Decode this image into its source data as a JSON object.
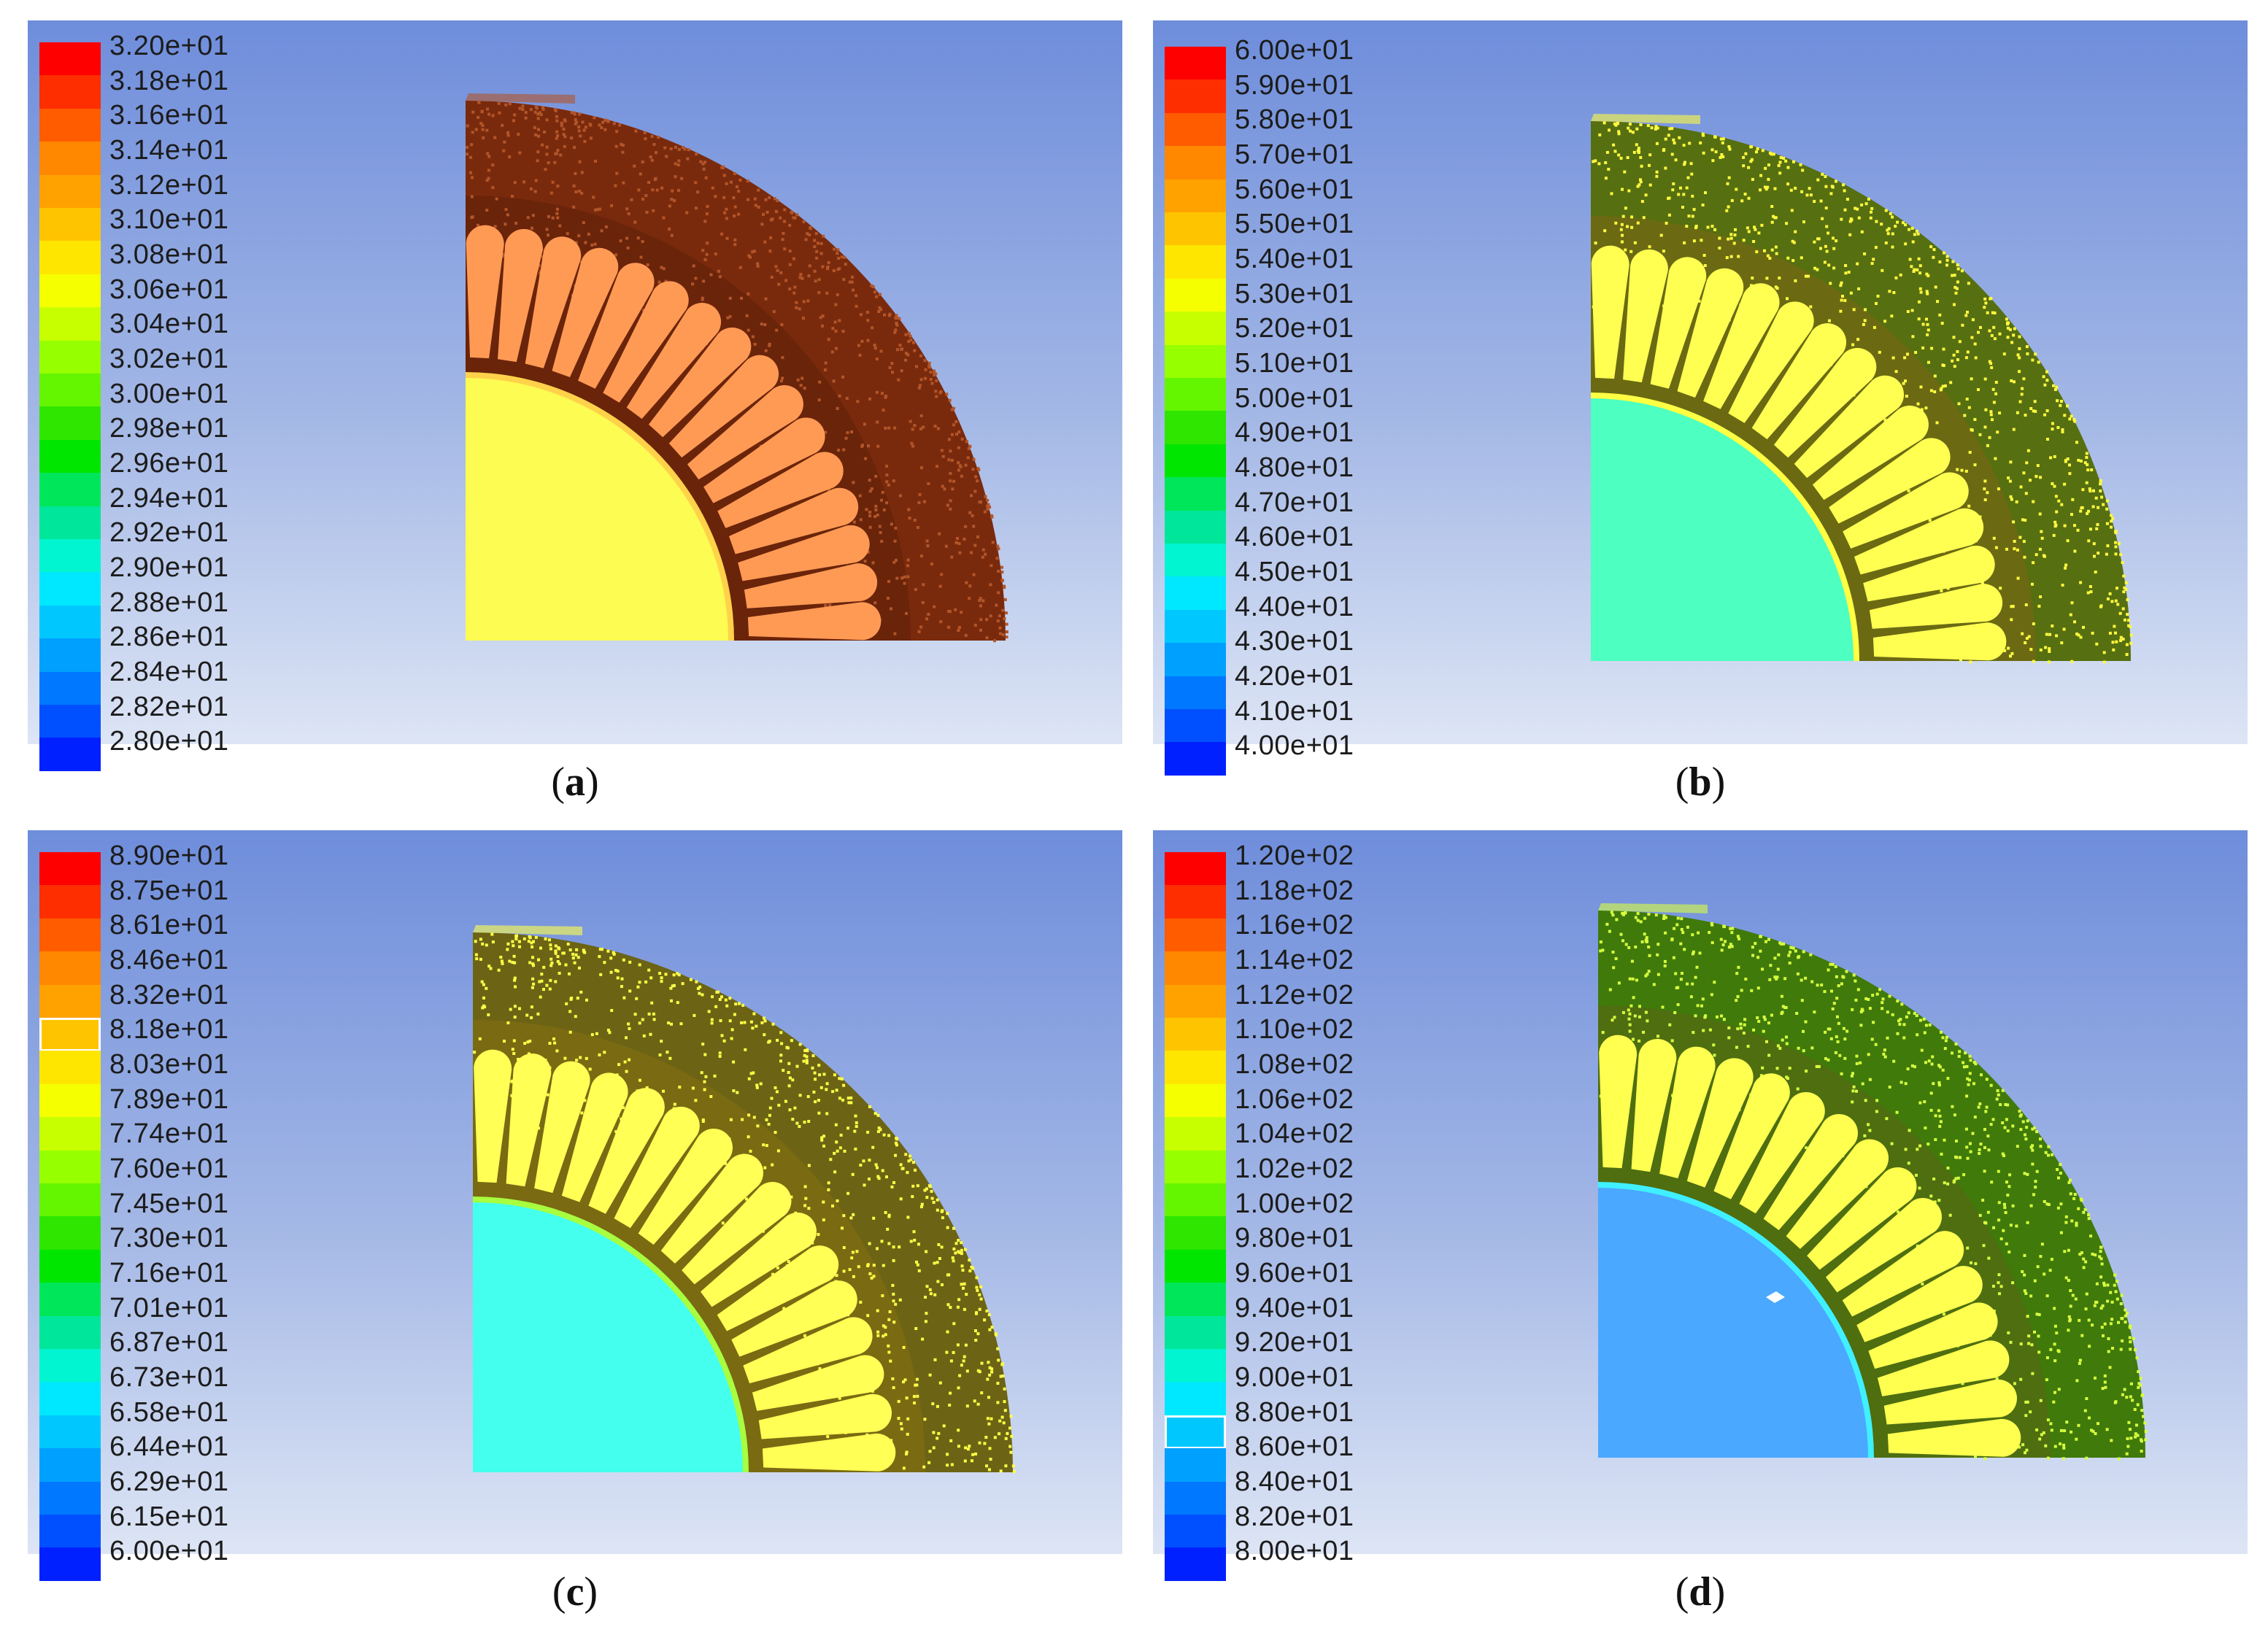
{
  "palette": [
    "#ff0000",
    "#ff2e00",
    "#ff5c00",
    "#ff8800",
    "#ffa200",
    "#ffc400",
    "#ffe600",
    "#f5ff00",
    "#c8ff00",
    "#96ff00",
    "#64f500",
    "#2ee600",
    "#00e600",
    "#00e65a",
    "#00e69a",
    "#00f5d0",
    "#00e8ff",
    "#00c8ff",
    "#00a0ff",
    "#0078ff",
    "#0050ff",
    "#0020ff"
  ],
  "panels": [
    {
      "label": "a",
      "ticks": [
        "3.20e+01",
        "3.18e+01",
        "3.16e+01",
        "3.14e+01",
        "3.12e+01",
        "3.10e+01",
        "3.08e+01",
        "3.06e+01",
        "3.04e+01",
        "3.02e+01",
        "3.00e+01",
        "2.98e+01",
        "2.96e+01",
        "2.94e+01",
        "2.92e+01",
        "2.90e+01",
        "2.88e+01",
        "2.86e+01",
        "2.84e+01",
        "2.82e+01",
        "2.80e+01"
      ],
      "highlight_band": null,
      "colors": {
        "yoke": "#7a2a0c",
        "tooth": "#6a240a",
        "slot": "#ff9a55",
        "rotor": "#fcfc52",
        "gap": "#ffd24a",
        "speckle": "#b2552a"
      }
    },
    {
      "label": "b",
      "ticks": [
        "6.00e+01",
        "5.90e+01",
        "5.80e+01",
        "5.70e+01",
        "5.60e+01",
        "5.50e+01",
        "5.40e+01",
        "5.30e+01",
        "5.20e+01",
        "5.10e+01",
        "5.00e+01",
        "4.90e+01",
        "4.80e+01",
        "4.70e+01",
        "4.60e+01",
        "4.50e+01",
        "4.40e+01",
        "4.30e+01",
        "4.20e+01",
        "4.10e+01",
        "4.00e+01"
      ],
      "highlight_band": null,
      "colors": {
        "yoke": "#566f10",
        "tooth": "#6b6a12",
        "slot": "#ffff52",
        "rotor": "#4dffc0",
        "gap": "#ffff44",
        "speckle": "#fffb40"
      }
    },
    {
      "label": "c",
      "ticks": [
        "8.90e+01",
        "8.75e+01",
        "8.61e+01",
        "8.46e+01",
        "8.32e+01",
        "8.18e+01",
        "8.03e+01",
        "7.89e+01",
        "7.74e+01",
        "7.60e+01",
        "7.45e+01",
        "7.30e+01",
        "7.16e+01",
        "7.01e+01",
        "6.87e+01",
        "6.73e+01",
        "6.58e+01",
        "6.44e+01",
        "6.29e+01",
        "6.15e+01",
        "6.00e+01"
      ],
      "highlight_band": 5,
      "colors": {
        "yoke": "#6c6414",
        "tooth": "#7a6a12",
        "slot": "#ffff55",
        "rotor": "#44ffee",
        "gap": "#a8ff40",
        "speckle": "#ffff48"
      }
    },
    {
      "label": "d",
      "ticks": [
        "1.20e+02",
        "1.18e+02",
        "1.16e+02",
        "1.14e+02",
        "1.12e+02",
        "1.10e+02",
        "1.08e+02",
        "1.06e+02",
        "1.04e+02",
        "1.02e+02",
        "1.00e+02",
        "9.80e+01",
        "9.60e+01",
        "9.40e+01",
        "9.20e+01",
        "9.00e+01",
        "8.80e+01",
        "8.60e+01",
        "8.40e+01",
        "8.20e+01",
        "8.00e+01"
      ],
      "highlight_band": 17,
      "colors": {
        "yoke": "#3f7a0a",
        "tooth": "#4e6e10",
        "slot": "#ffff50",
        "rotor": "#4aa8ff",
        "gap": "#40f0ff",
        "speckle": "#d8ff40"
      }
    }
  ]
}
